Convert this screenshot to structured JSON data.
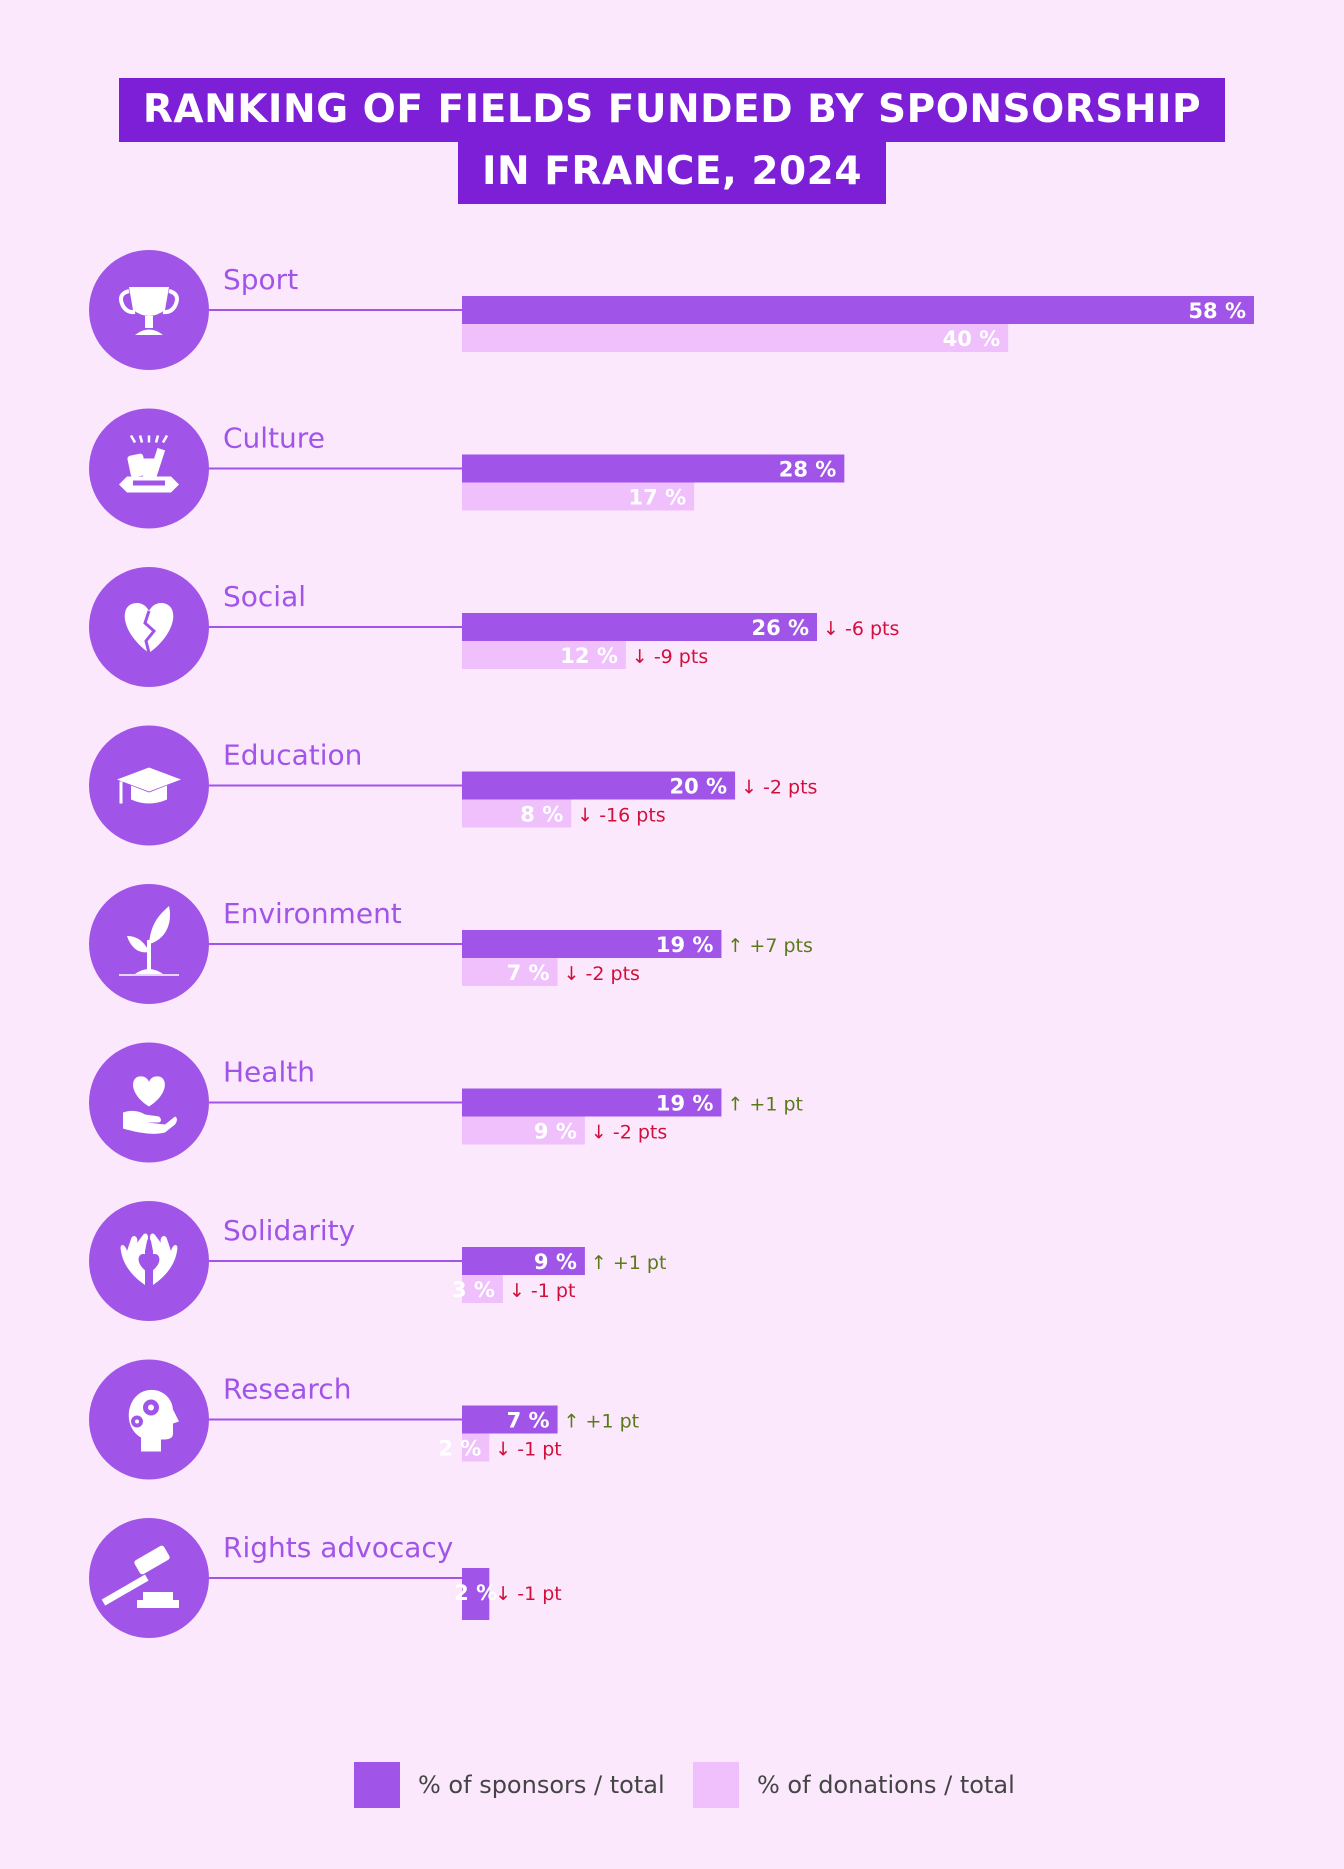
{
  "title": {
    "line1": "RANKING OF FIELDS FUNDED BY SPONSORSHIP",
    "line2": "IN FRANCE, 2024"
  },
  "colors": {
    "background": "#fce8fd",
    "title_bg": "#7e1fd8",
    "sponsors": "#a155e8",
    "donations": "#efc0fb",
    "circle": "#a155e8",
    "label": "#a155e8",
    "down": "#d0103a",
    "up": "#5a7a1a"
  },
  "legend": {
    "sponsors": "% of sponsors / total",
    "donations": "% of donations / total"
  },
  "chart_data": {
    "type": "bar",
    "orientation": "horizontal",
    "xlim": [
      0,
      58
    ],
    "categories": [
      "Sport",
      "Culture",
      "Social",
      "Education",
      "Environment",
      "Health",
      "Solidarity",
      "Research",
      "Rights advocacy"
    ],
    "icons": [
      "trophy-icon",
      "culture-icon",
      "heart-puzzle-icon",
      "graduation-cap-icon",
      "sprout-icon",
      "heart-hand-icon",
      "hands-heart-icon",
      "head-gears-icon",
      "gavel-icon"
    ],
    "series": [
      {
        "name": "% of sponsors / total",
        "values": [
          58,
          28,
          26,
          20,
          19,
          19,
          9,
          7,
          2
        ],
        "labels": [
          "58 %",
          "28 %",
          "26 %",
          "20 %",
          "19 %",
          "19 %",
          "9 %",
          "7 %",
          "2 %"
        ],
        "changes": [
          "",
          "",
          "-6 pts",
          "-2 pts",
          "+7 pts",
          "+1 pt",
          "+1 pt",
          "+1 pt",
          "-1 pt"
        ]
      },
      {
        "name": "% of donations / total",
        "values": [
          40,
          17,
          12,
          8,
          7,
          9,
          3,
          2,
          null
        ],
        "labels": [
          "40 %",
          "17 %",
          "12 %",
          "8 %",
          "7 %",
          "9 %",
          "3 %",
          "2 %",
          ""
        ],
        "changes": [
          "",
          "",
          "-9 pts",
          "-16 pts",
          "-2 pts",
          "-2 pts",
          "-1 pt",
          "-1 pt",
          ""
        ]
      }
    ]
  }
}
